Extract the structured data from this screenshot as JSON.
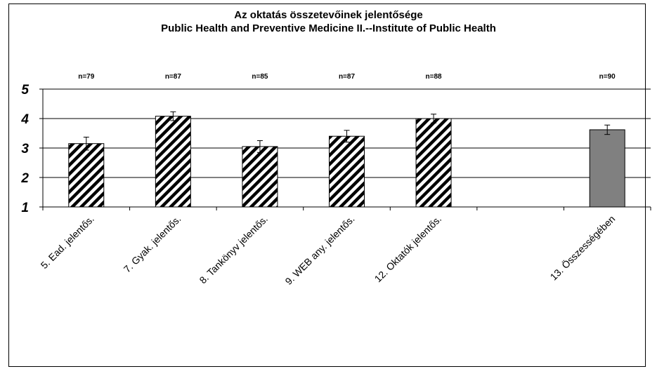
{
  "chart_data": {
    "type": "bar",
    "title": "Az oktatás összetevőinek jelentősége",
    "subtitle": "Public Health and Preventive Medicine II.--Institute of Public Health",
    "categories": [
      "5. Ead. jelentős.",
      "7. Gyak. jelentős.",
      "8. Tankönyv jelentős.",
      "9. WEB any. jelentős.",
      "12. Oktatók jelentős.",
      "",
      "13. Összességében"
    ],
    "values": [
      3.15,
      4.08,
      3.05,
      3.4,
      4.0,
      null,
      3.62
    ],
    "error": [
      0.22,
      0.15,
      0.2,
      0.2,
      0.15,
      null,
      0.16
    ],
    "n_labels": [
      "n=79",
      "n=87",
      "n=85",
      "n=87",
      "n=88",
      "",
      "n=90"
    ],
    "fill": [
      "hatch",
      "hatch",
      "hatch",
      "hatch",
      "hatch",
      null,
      "solid"
    ],
    "colors": {
      "solid": "#808080",
      "hatch_line": "#000000",
      "hatch_bg": "#ffffff",
      "grid": "#000000"
    },
    "ylim": [
      1,
      5
    ],
    "yticks": [
      "1",
      "2",
      "3",
      "4",
      "5"
    ],
    "grid": true,
    "legend": "none",
    "xlabel": "",
    "ylabel": ""
  }
}
